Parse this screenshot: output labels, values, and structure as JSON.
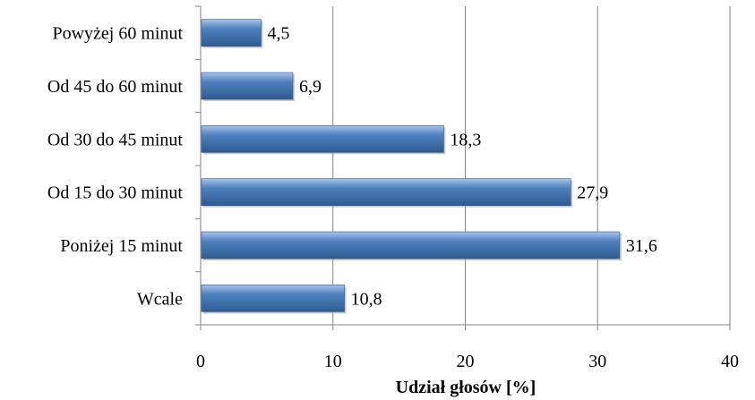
{
  "chart_data": {
    "type": "bar",
    "orientation": "horizontal",
    "categories": [
      "Powyżej 60 minut",
      "Od 45 do 60 minut",
      "Od 30 do 45 minut",
      "Od 15 do 30 minut",
      "Poniżej 15 minut",
      "Wcale"
    ],
    "values": [
      4.5,
      6.9,
      18.3,
      27.9,
      31.6,
      10.8
    ],
    "value_labels": [
      "4,5",
      "6,9",
      "18,3",
      "27,9",
      "31,6",
      "10,8"
    ],
    "title": "",
    "xlabel": "Udział głosów [%]",
    "ylabel": "",
    "xlim": [
      0,
      40
    ],
    "xticks": [
      0,
      10,
      20,
      30,
      40
    ],
    "xtick_labels": [
      "0",
      "10",
      "20",
      "30",
      "40"
    ],
    "grid": "vertical",
    "legend": "none",
    "bar_color": "#4f81bd",
    "bar_color_light": "#a9c4e8",
    "bar_color_dark": "#2f5a91"
  }
}
